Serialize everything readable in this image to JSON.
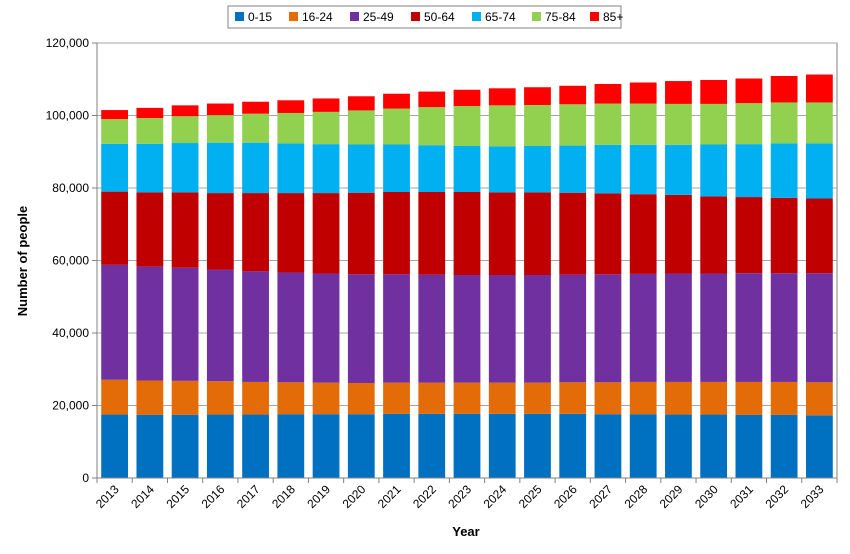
{
  "chart_data": {
    "type": "bar",
    "stacked": true,
    "xlabel": "Year",
    "ylabel": "Number of people",
    "ylim": [
      0,
      120000
    ],
    "yticks": [
      0,
      20000,
      40000,
      60000,
      80000,
      100000,
      120000
    ],
    "ytick_labels": [
      "0",
      "20,000",
      "40,000",
      "60,000",
      "80,000",
      "100,000",
      "120,000"
    ],
    "grid": true,
    "legend": "top-center",
    "categories": [
      "2013",
      "2014",
      "2015",
      "2016",
      "2017",
      "2018",
      "2019",
      "2020",
      "2021",
      "2022",
      "2023",
      "2024",
      "2025",
      "2026",
      "2027",
      "2028",
      "2029",
      "2030",
      "2031",
      "2032",
      "2033"
    ],
    "series": [
      {
        "name": "0-15",
        "color": "#0070C0",
        "values": [
          17500,
          17400,
          17400,
          17500,
          17500,
          17600,
          17600,
          17600,
          17700,
          17700,
          17700,
          17700,
          17700,
          17700,
          17600,
          17600,
          17500,
          17500,
          17400,
          17400,
          17300
        ]
      },
      {
        "name": "16-24",
        "color": "#E36C09",
        "values": [
          9600,
          9500,
          9400,
          9200,
          9000,
          8800,
          8700,
          8600,
          8600,
          8600,
          8600,
          8600,
          8600,
          8700,
          8800,
          8900,
          9000,
          9000,
          9100,
          9100,
          9100
        ]
      },
      {
        "name": "25-49",
        "color": "#7030A0",
        "values": [
          31700,
          31400,
          31200,
          30800,
          30500,
          30300,
          30100,
          30000,
          29900,
          29800,
          29700,
          29700,
          29700,
          29700,
          29800,
          29800,
          29900,
          29900,
          30000,
          30000,
          30100
        ]
      },
      {
        "name": "50-64",
        "color": "#C00000",
        "values": [
          20200,
          20500,
          20800,
          21100,
          21600,
          21900,
          22200,
          22500,
          22700,
          22800,
          22900,
          22800,
          22800,
          22600,
          22300,
          22000,
          21700,
          21300,
          21000,
          20800,
          20600
        ]
      },
      {
        "name": "65-74",
        "color": "#00B0F0",
        "values": [
          13200,
          13400,
          13600,
          13900,
          13900,
          13700,
          13500,
          13300,
          13100,
          12900,
          12700,
          12700,
          12800,
          13000,
          13400,
          13600,
          13800,
          14300,
          14600,
          15000,
          15200
        ]
      },
      {
        "name": "75-84",
        "color": "#92D050",
        "values": [
          6800,
          7100,
          7400,
          7600,
          8000,
          8400,
          8900,
          9400,
          9900,
          10500,
          11000,
          11300,
          11300,
          11400,
          11400,
          11400,
          11300,
          11200,
          11300,
          11300,
          11300
        ]
      },
      {
        "name": "85+",
        "color": "#FF0000",
        "values": [
          2500,
          2800,
          3000,
          3200,
          3300,
          3500,
          3700,
          3900,
          4100,
          4300,
          4500,
          4700,
          4900,
          5100,
          5400,
          5800,
          6300,
          6600,
          6800,
          7300,
          7700
        ]
      }
    ]
  }
}
